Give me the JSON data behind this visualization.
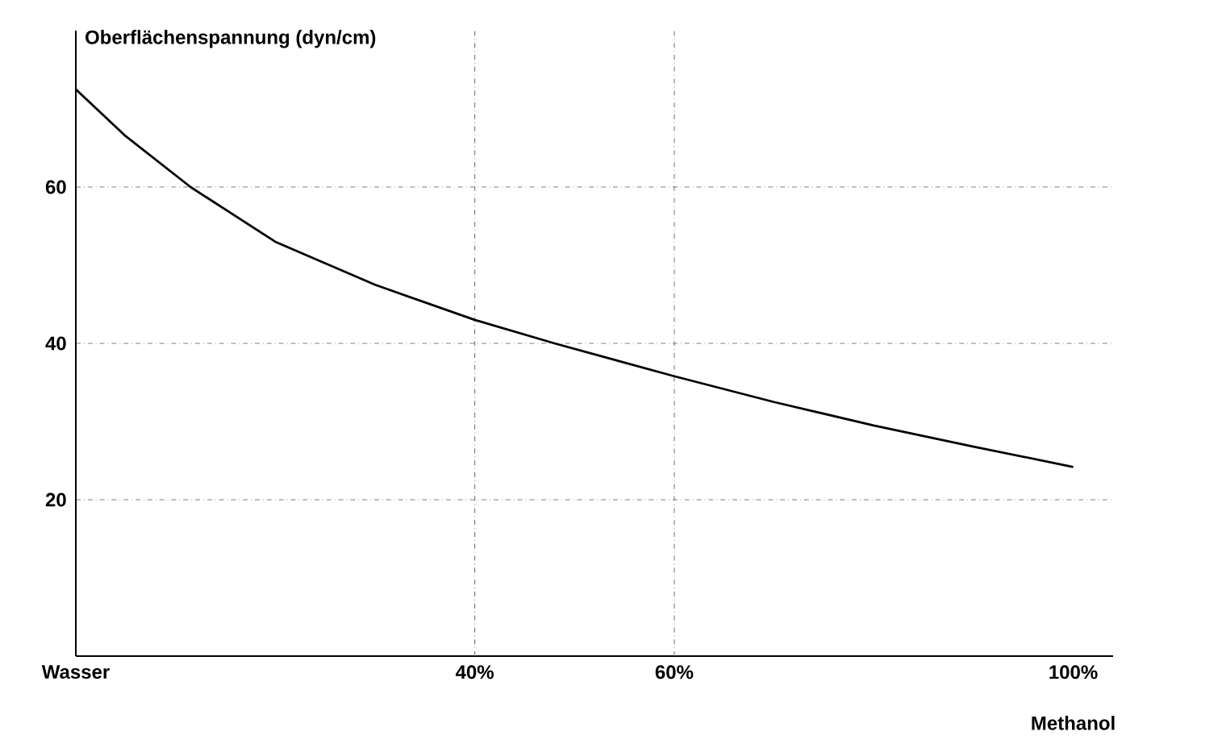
{
  "chart_data": {
    "type": "line",
    "ylabel": "Oberflächenspannung (dyn/cm)",
    "xlabel": "Methanol",
    "x": [
      0,
      5,
      11.5,
      20,
      30,
      40,
      48,
      60,
      70,
      80,
      90,
      100
    ],
    "series": [
      {
        "color": "#000000",
        "values": [
          72.5,
          66.5,
          60,
          53,
          47.5,
          43,
          40,
          35.8,
          32.5,
          29.5,
          26.8,
          24.2
        ]
      }
    ],
    "xlim": [
      0,
      104
    ],
    "ylim": [
      0,
      80
    ],
    "xticks": [
      {
        "value": 0,
        "label": "Wasser"
      },
      {
        "value": 40,
        "label": "40%"
      },
      {
        "value": 60,
        "label": "60%"
      },
      {
        "value": 100,
        "label": "100%"
      }
    ],
    "yticks": [
      20,
      40,
      60
    ],
    "grid": "y",
    "marker": "none",
    "line_style": "solid",
    "ref_lines": [
      {
        "axis": "x",
        "value": 40,
        "line_style": "dashdotted"
      },
      {
        "axis": "x",
        "value": 60,
        "line_style": "dashdotted"
      }
    ]
  }
}
